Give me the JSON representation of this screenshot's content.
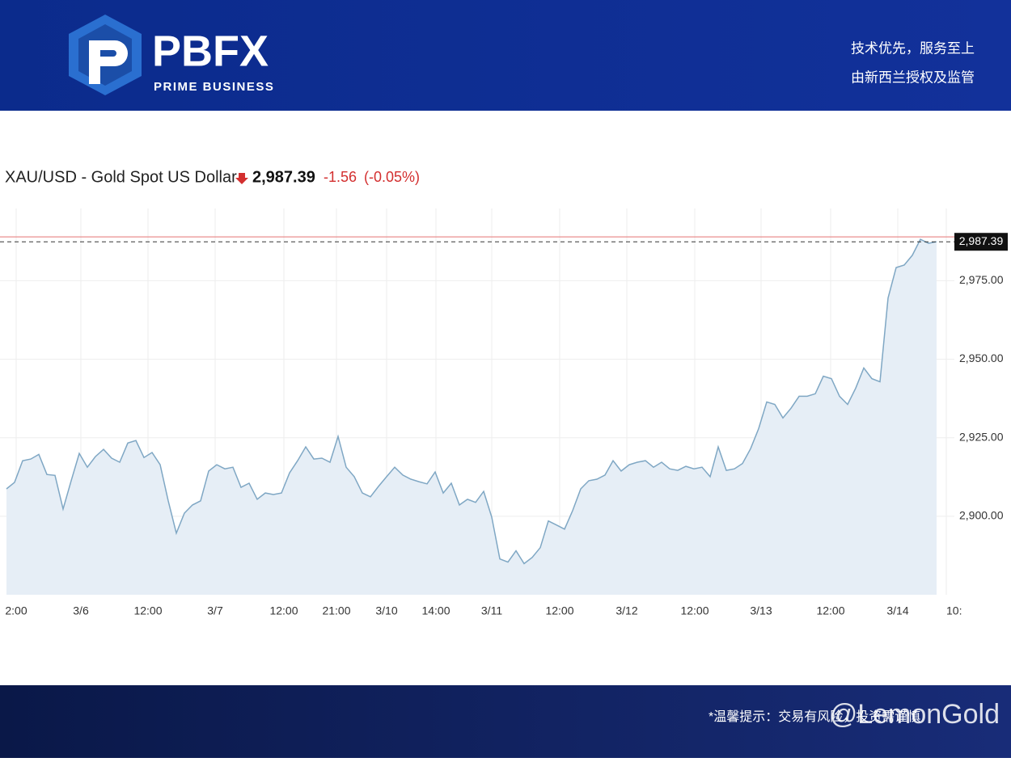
{
  "header": {
    "brand": "PBFX",
    "brand_subtitle": "PRIME BUSINESS",
    "slogan": "技术优先，服务至上",
    "regulation": "由新西兰授权及监管"
  },
  "footer": {
    "note": "*温馨提示：交易有风险，投资需谨慎",
    "watermark": "@LemonGold"
  },
  "chart_data": {
    "type": "line",
    "title": "XAU/USD - Gold Spot US Dollar",
    "price": {
      "value": 2987.39,
      "label": "2,987.39"
    },
    "change": {
      "value": -1.56,
      "label": "-1.56"
    },
    "change_percent": {
      "value": -0.05,
      "label": "(-0.05%)"
    },
    "color": "#7fa7c4",
    "area_color": "#e6eef6",
    "grid": true,
    "reference_lines": [
      {
        "value": 2988.95,
        "color": "#e57373"
      }
    ],
    "values": [
      2908.7,
      2910.8,
      2917.7,
      2918.2,
      2919.7,
      2913.3,
      2913,
      2902.3,
      2911.3,
      2920,
      2915.6,
      2919,
      2921.3,
      2918.5,
      2917.2,
      2923.3,
      2924.1,
      2918.7,
      2920.3,
      2916.4,
      2904.9,
      2894.6,
      2901,
      2903.6,
      2904.9,
      2914.4,
      2916.4,
      2915.1,
      2915.6,
      2909.2,
      2910.5,
      2905.4,
      2907.4,
      2906.9,
      2907.4,
      2913.8,
      2917.7,
      2922.1,
      2918.2,
      2918.5,
      2917.2,
      2925.4,
      2915.6,
      2912.6,
      2907.4,
      2906.2,
      2909.5,
      2912.6,
      2915.6,
      2913.1,
      2911.8,
      2911,
      2910.3,
      2914.1,
      2907.4,
      2910.5,
      2903.6,
      2905.4,
      2904.4,
      2907.9,
      2899.7,
      2886.4,
      2885.4,
      2889,
      2884.9,
      2886.9,
      2890,
      2898.5,
      2897.2,
      2895.9,
      2901.8,
      2908.7,
      2911.3,
      2911.8,
      2913.1,
      2917.7,
      2914.4,
      2916.4,
      2917.2,
      2917.7,
      2915.6,
      2917.2,
      2915.1,
      2914.6,
      2915.9,
      2915.1,
      2915.6,
      2912.6,
      2922.1,
      2914.6,
      2915.1,
      2916.8,
      2921.5,
      2927.9,
      2936.4,
      2935.6,
      2931.3,
      2934.4,
      2938.2,
      2938.2,
      2939,
      2944.6,
      2943.8,
      2938.2,
      2935.6,
      2940.8,
      2947.2,
      2943.8,
      2942.8,
      2969.5,
      2979.2,
      2980,
      2983.1,
      2988.2,
      2986.9,
      2987.39
    ],
    "xlim": [
      -0.8,
      117.2
    ],
    "xticks": [
      {
        "value": 1.2,
        "label": "2:00"
      },
      {
        "value": 9.2,
        "label": "3/6"
      },
      {
        "value": 17.5,
        "label": "12:00"
      },
      {
        "value": 25.8,
        "label": "3/7"
      },
      {
        "value": 34.3,
        "label": "12:00"
      },
      {
        "value": 40.8,
        "label": "21:00"
      },
      {
        "value": 47,
        "label": "3/10"
      },
      {
        "value": 53.1,
        "label": "14:00"
      },
      {
        "value": 60,
        "label": "3/11"
      },
      {
        "value": 68.4,
        "label": "12:00"
      },
      {
        "value": 76.7,
        "label": "3/12"
      },
      {
        "value": 85.1,
        "label": "12:00"
      },
      {
        "value": 93.3,
        "label": "3/13"
      },
      {
        "value": 101.9,
        "label": "12:00"
      },
      {
        "value": 110.2,
        "label": "3/14"
      },
      {
        "value": 116.2,
        "label": "10:"
      }
    ],
    "ylim": [
      2875,
      2998
    ],
    "yticks": [
      {
        "value": 2900,
        "label": "2,900.00"
      },
      {
        "value": 2925,
        "label": "2,925.00"
      },
      {
        "value": 2950,
        "label": "2,950.00"
      },
      {
        "value": 2975,
        "label": "2,975.00"
      }
    ]
  }
}
